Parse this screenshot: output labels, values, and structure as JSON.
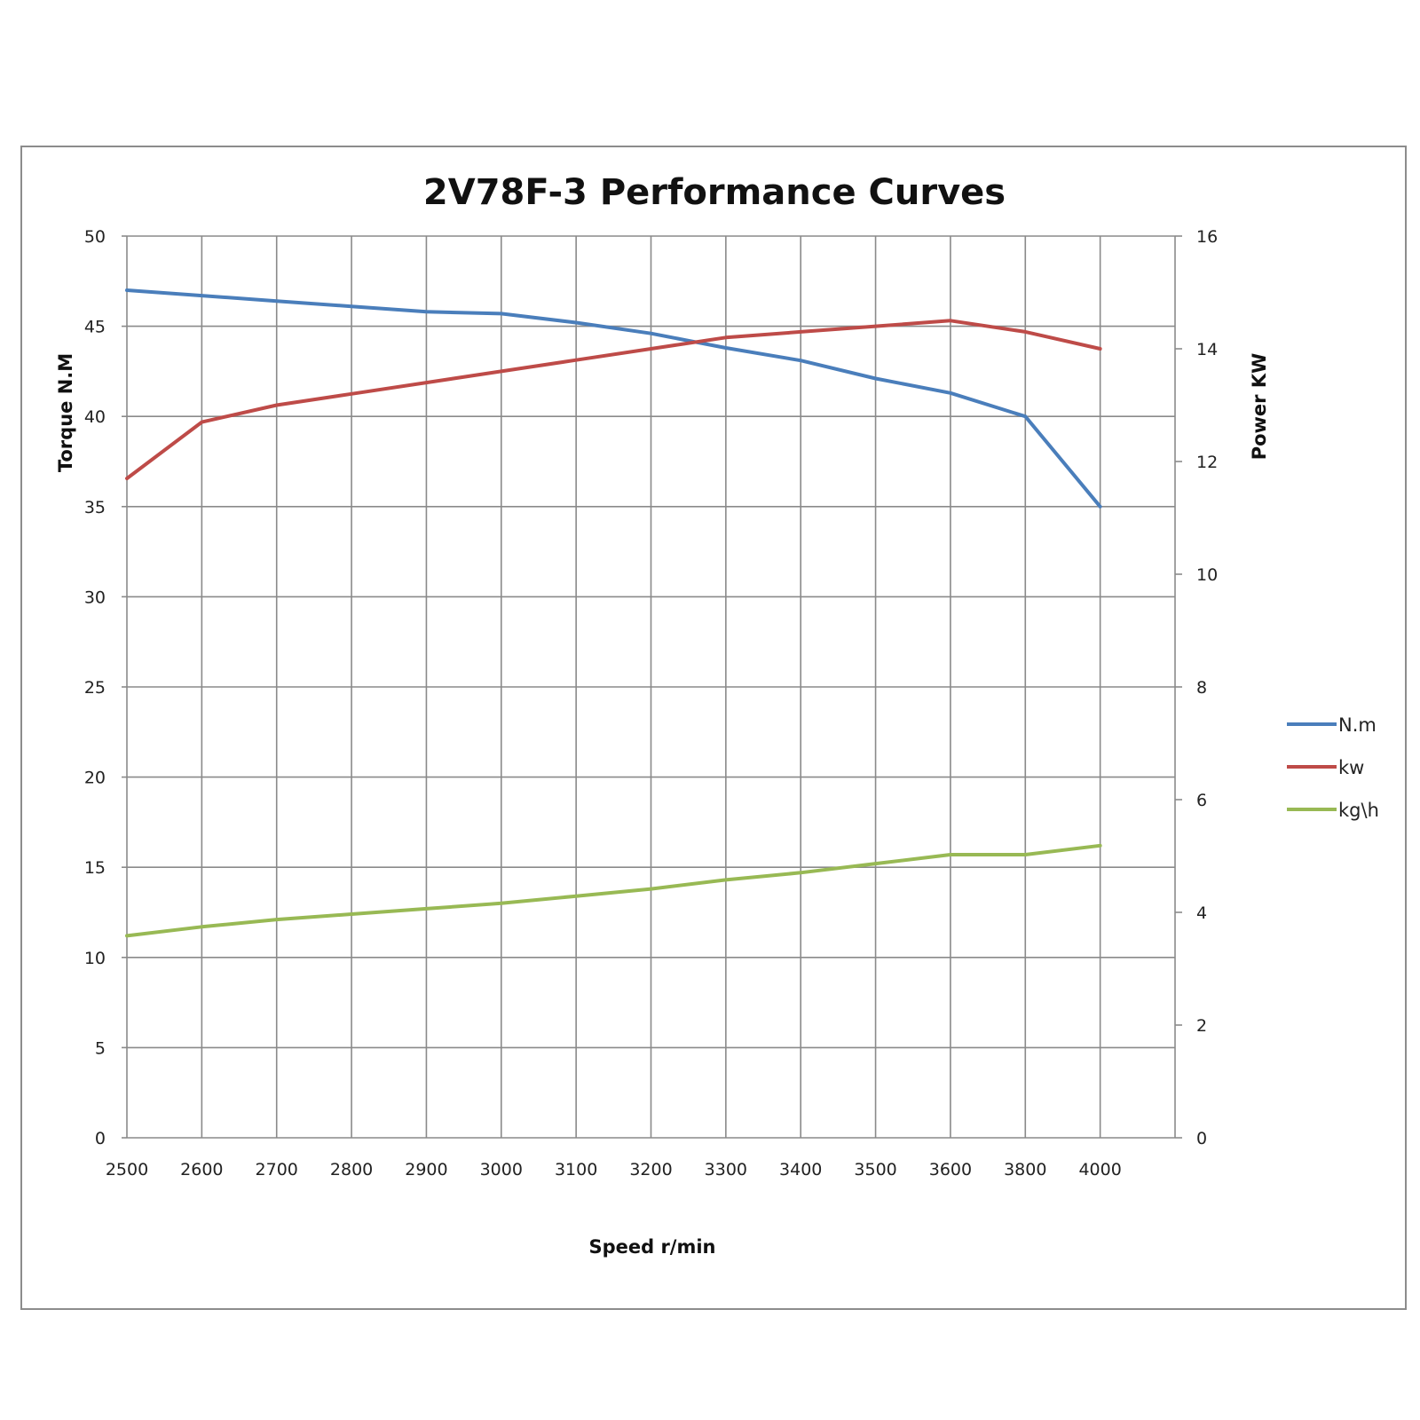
{
  "chart_data": {
    "type": "line",
    "title": "2V78F-3 Performance Curves",
    "xlabel": "Speed r/min",
    "ylabel_left": "Torque N.M",
    "ylabel_right": "Power KW",
    "categories": [
      "2500",
      "2600",
      "2700",
      "2800",
      "2900",
      "3000",
      "3100",
      "3200",
      "3300",
      "3400",
      "3500",
      "3600",
      "3800",
      "4000"
    ],
    "left_axis": {
      "min": 0,
      "max": 50,
      "step": 5,
      "ticks": [
        "0",
        "5",
        "10",
        "15",
        "20",
        "25",
        "30",
        "35",
        "40",
        "45",
        "50"
      ]
    },
    "right_axis": {
      "min": 0,
      "max": 16,
      "step": 2,
      "ticks": [
        "0",
        "2",
        "4",
        "6",
        "8",
        "10",
        "12",
        "14",
        "16"
      ]
    },
    "grid": true,
    "legend_position": "right",
    "series": [
      {
        "name": "N.m",
        "axis": "left",
        "color": "#4a7ebb",
        "values": [
          47.0,
          46.7,
          46.4,
          46.1,
          45.8,
          45.7,
          45.2,
          44.6,
          43.8,
          43.1,
          42.1,
          41.3,
          40.0,
          35.0
        ]
      },
      {
        "name": "kw",
        "axis": "right",
        "color": "#be4b48",
        "values": [
          11.7,
          12.7,
          13.0,
          13.2,
          13.4,
          13.6,
          13.8,
          14.0,
          14.2,
          14.3,
          14.4,
          14.5,
          14.3,
          14.0
        ]
      },
      {
        "name": "kg\\h",
        "axis": "left",
        "color": "#98b954",
        "values": [
          11.2,
          11.7,
          12.1,
          12.4,
          12.7,
          13.0,
          13.4,
          13.8,
          14.3,
          14.7,
          15.2,
          15.7,
          15.7,
          16.2
        ]
      }
    ]
  }
}
